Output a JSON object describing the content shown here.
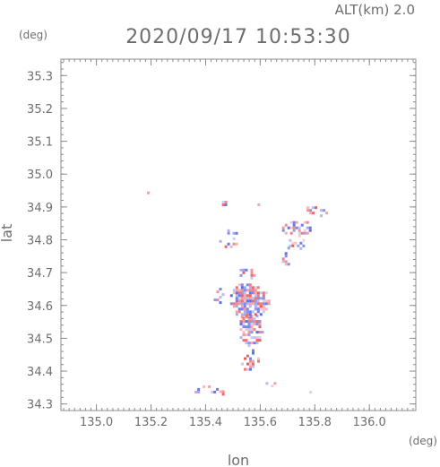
{
  "header": {
    "altitude_label": "ALT(km) 2.0",
    "timestamp": "2020/09/17 10:53:30"
  },
  "chart_data": {
    "type": "heatmap",
    "title": "2020/09/17 10:53:30",
    "subtitle": "ALT(km) 2.0",
    "xlabel": "lon",
    "ylabel": "lat",
    "x_unit": "(deg)",
    "y_unit": "(deg)",
    "xlim": [
      134.87,
      136.17
    ],
    "ylim": [
      34.28,
      35.35
    ],
    "x_ticks": [
      135.0,
      135.2,
      135.4,
      135.6,
      135.8,
      136.0
    ],
    "x_tick_labels": [
      "135.0",
      "135.2",
      "135.4",
      "135.6",
      "135.8",
      "136.0"
    ],
    "y_ticks": [
      34.3,
      34.4,
      34.5,
      34.6,
      34.7,
      34.8,
      34.9,
      35.0,
      35.1,
      35.2,
      35.3
    ],
    "y_tick_labels": [
      "34.3",
      "34.4",
      "34.5",
      "34.6",
      "34.7",
      "34.8",
      "34.9",
      "35.0",
      "35.1",
      "35.2",
      "35.3"
    ],
    "grid": false,
    "colors": {
      "positive": "#e8474f",
      "negative": "#4a5be0",
      "frame": "#8c8c8c",
      "text": "#6e6e6e"
    },
    "echo_regions": [
      {
        "lon": 135.555,
        "lat": 34.62,
        "rlon": 0.075,
        "rlat": 0.055,
        "density": 0.85
      },
      {
        "lon": 135.56,
        "lat": 34.53,
        "rlon": 0.045,
        "rlat": 0.05,
        "density": 0.8
      },
      {
        "lon": 135.555,
        "lat": 34.44,
        "rlon": 0.035,
        "rlat": 0.035,
        "density": 0.65
      },
      {
        "lon": 135.545,
        "lat": 34.7,
        "rlon": 0.03,
        "rlat": 0.02,
        "density": 0.6
      },
      {
        "lon": 135.73,
        "lat": 34.84,
        "rlon": 0.06,
        "rlat": 0.025,
        "density": 0.5
      },
      {
        "lon": 135.73,
        "lat": 34.79,
        "rlon": 0.035,
        "rlat": 0.02,
        "density": 0.6
      },
      {
        "lon": 135.8,
        "lat": 34.89,
        "rlon": 0.04,
        "rlat": 0.02,
        "density": 0.5
      },
      {
        "lon": 135.69,
        "lat": 34.76,
        "rlon": 0.02,
        "rlat": 0.035,
        "density": 0.45
      },
      {
        "lon": 135.46,
        "lat": 34.915,
        "rlon": 0.02,
        "rlat": 0.012,
        "density": 0.55
      },
      {
        "lon": 135.59,
        "lat": 34.915,
        "rlon": 0.01,
        "rlat": 0.012,
        "density": 0.55
      },
      {
        "lon": 135.48,
        "lat": 34.8,
        "rlon": 0.05,
        "rlat": 0.04,
        "density": 0.12
      },
      {
        "lon": 135.39,
        "lat": 34.35,
        "rlon": 0.06,
        "rlat": 0.015,
        "density": 0.4
      },
      {
        "lon": 135.46,
        "lat": 34.34,
        "rlon": 0.02,
        "rlat": 0.01,
        "density": 0.5
      },
      {
        "lon": 135.63,
        "lat": 34.365,
        "rlon": 0.02,
        "rlat": 0.01,
        "density": 0.4
      },
      {
        "lon": 135.78,
        "lat": 34.34,
        "rlon": 0.02,
        "rlat": 0.008,
        "density": 0.55
      },
      {
        "lon": 135.175,
        "lat": 34.945,
        "rlon": 0.01,
        "rlat": 0.01,
        "density": 0.6
      },
      {
        "lon": 135.45,
        "lat": 34.64,
        "rlon": 0.03,
        "rlat": 0.03,
        "density": 0.2
      },
      {
        "lon": 135.895,
        "lat": 34.85,
        "rlon": 0.006,
        "rlat": 0.006,
        "density": 0.5
      }
    ]
  }
}
